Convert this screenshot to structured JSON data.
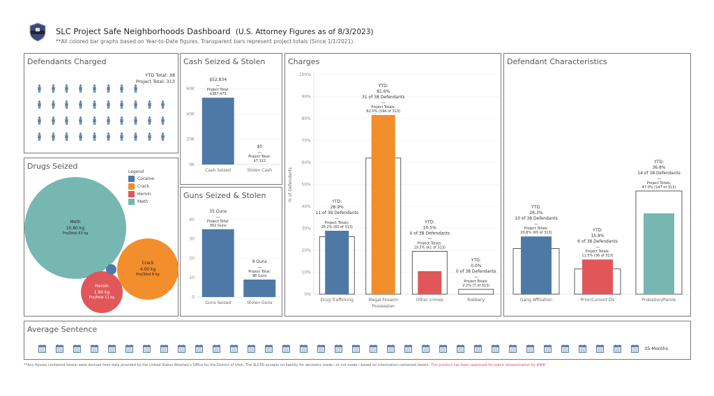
{
  "header": {
    "logo": "police-badge-logo",
    "title": "SLC Project Safe Neighborhoods Dashboard",
    "title_suffix": "(U.S. Attorney Figures as of 8/3/2023)",
    "subtitle": "**All colored bar graphs based on Year-to-Date figures. Transparent bars represent project totals (Since 1/1/2021)."
  },
  "colors": {
    "blue": "#4e79a7",
    "orange": "#f28e2b",
    "red": "#e15759",
    "teal": "#76b7b2"
  },
  "defendants": {
    "title": "Defendants Charged",
    "ytd_total": "YTD Total: 38",
    "project_total": "Project Total: 313",
    "icon": "person-icon",
    "count": 38
  },
  "drugs": {
    "title": "Drugs Seized",
    "legend_title": "Legend",
    "legend": [
      {
        "name": "Cocaine",
        "color": "#4e79a7"
      },
      {
        "name": "Crack",
        "color": "#f28e2b"
      },
      {
        "name": "Heroin",
        "color": "#e15759"
      },
      {
        "name": "Meth",
        "color": "#76b7b2"
      }
    ],
    "bubbles": [
      {
        "name": "Meth",
        "value": "10.80 kg",
        "total": "ProjTotal 63 kg",
        "kg": 10.8
      },
      {
        "name": "Crack",
        "value": "4.00 kg",
        "total": "ProjTotal 8 kg",
        "kg": 4.0
      },
      {
        "name": "Heroin",
        "value": "1.84 kg",
        "total": "ProjTotal 11 kg",
        "kg": 1.84
      },
      {
        "name": "Cocaine",
        "value": "",
        "total": "",
        "kg": 0.1
      }
    ]
  },
  "sentence": {
    "title": "Average Sentence",
    "icon": "calendar-icon",
    "months": 35,
    "label": "35 Months"
  },
  "footer": {
    "text": "**Any figures contained herein were derived from data provided by the United States Attorney's Office for the District of Utah. The SLCPD accepts no liability for decisions made—or not made—based on information contained herein.",
    "approval": "This product has been approved for public dissemination by ###."
  },
  "chart_data": [
    {
      "id": "cash",
      "title": "Cash Seized & Stolen",
      "type": "bar",
      "ylim": [
        0,
        70000
      ],
      "yticks": [
        0,
        20000,
        40000,
        60000
      ],
      "ytick_labels": [
        "0K",
        "20K",
        "40K",
        "60K"
      ],
      "categories": [
        "Cash Seized",
        "Stolen Cash"
      ],
      "values": [
        52834,
        0
      ],
      "project_totals": [
        387475,
        7122
      ],
      "colors": [
        "#4e79a7",
        "#4e79a7"
      ],
      "labels": [
        [
          "$52,834",
          "—",
          "Project Total:",
          "$387,475"
        ],
        [
          "$0",
          "—",
          "Project Total:",
          "$7,122"
        ]
      ]
    },
    {
      "id": "guns",
      "title": "Guns Seized & Stolen",
      "type": "bar",
      "ylim": [
        0,
        45
      ],
      "yticks": [
        0,
        10,
        20,
        30,
        40
      ],
      "ytick_labels": [
        "0",
        "10",
        "20",
        "30",
        "40"
      ],
      "categories": [
        "Guns Seized",
        "Stolen Guns"
      ],
      "values": [
        35,
        9
      ],
      "project_totals": [
        362,
        98
      ],
      "colors": [
        "#4e79a7",
        "#4e79a7"
      ],
      "labels": [
        [
          "35 Guns",
          "—",
          "Project Total:",
          "362 Guns"
        ],
        [
          "9 Guns",
          "—",
          "Project Total:",
          "98 Guns"
        ]
      ]
    },
    {
      "id": "charges",
      "title": "Charges",
      "type": "bar",
      "ylabel": "% of Defendants",
      "ylim": [
        0,
        100
      ],
      "yticks": [
        0,
        10,
        20,
        30,
        40,
        50,
        60,
        70,
        80,
        90,
        100
      ],
      "ytick_labels": [
        "0%",
        "10%",
        "20%",
        "30%",
        "40%",
        "50%",
        "60%",
        "70%",
        "80%",
        "90%",
        "100%"
      ],
      "categories": [
        "Drug Trafficking",
        "Illegal Firearm Possession",
        "Other crimes",
        "Robbery"
      ],
      "values": [
        28.9,
        81.6,
        10.5,
        0.0
      ],
      "project_totals": [
        26.2,
        62.0,
        19.5,
        2.2
      ],
      "colors": [
        "#4e79a7",
        "#f28e2b",
        "#e15759",
        "#76b7b2"
      ],
      "labels": [
        [
          "YTD:",
          "28.9%",
          "11 of 38 Defendants",
          "—",
          "Project Totals:",
          "26.2% (82 of 313)"
        ],
        [
          "YTD:",
          "81.6%",
          "31 of 38 Defendants",
          "—",
          "Project Totals:",
          "62.0% (194 of 313)"
        ],
        [
          "YTD:",
          "10.5%",
          "4 of 38 Defendants",
          "—",
          "Project Totals:",
          "19.5% (61 of 313)"
        ],
        [
          "YTD:",
          "0.0%",
          "0 of 38 Defendants",
          "—",
          "Project Totals:",
          "2.2% (7 of 313)"
        ]
      ]
    },
    {
      "id": "characteristics",
      "title": "Defendant Characteristics",
      "type": "bar",
      "ylim": [
        0,
        100
      ],
      "yticks": [],
      "ytick_labels": [],
      "categories": [
        "Gang Affiliation",
        "Prior/Current DV",
        "Probation/Parole"
      ],
      "values": [
        26.3,
        15.8,
        36.8
      ],
      "project_totals": [
        20.8,
        11.5,
        47.0
      ],
      "colors": [
        "#4e79a7",
        "#e15759",
        "#76b7b2"
      ],
      "labels": [
        [
          "YTD:",
          "26.3%",
          "10 of 38 Defendants",
          "—",
          "Project Totals:",
          "20.8% (65 of 313)"
        ],
        [
          "YTD:",
          "15.8%",
          "6 of 38 Defendants",
          "—",
          "Project Totals:",
          "11.5% (36 of 313)"
        ],
        [
          "YTD:",
          "36.8%",
          "14 of 38 Defendants",
          "—",
          "Project Totals:",
          "47.0% (147 of 313)"
        ]
      ]
    }
  ]
}
